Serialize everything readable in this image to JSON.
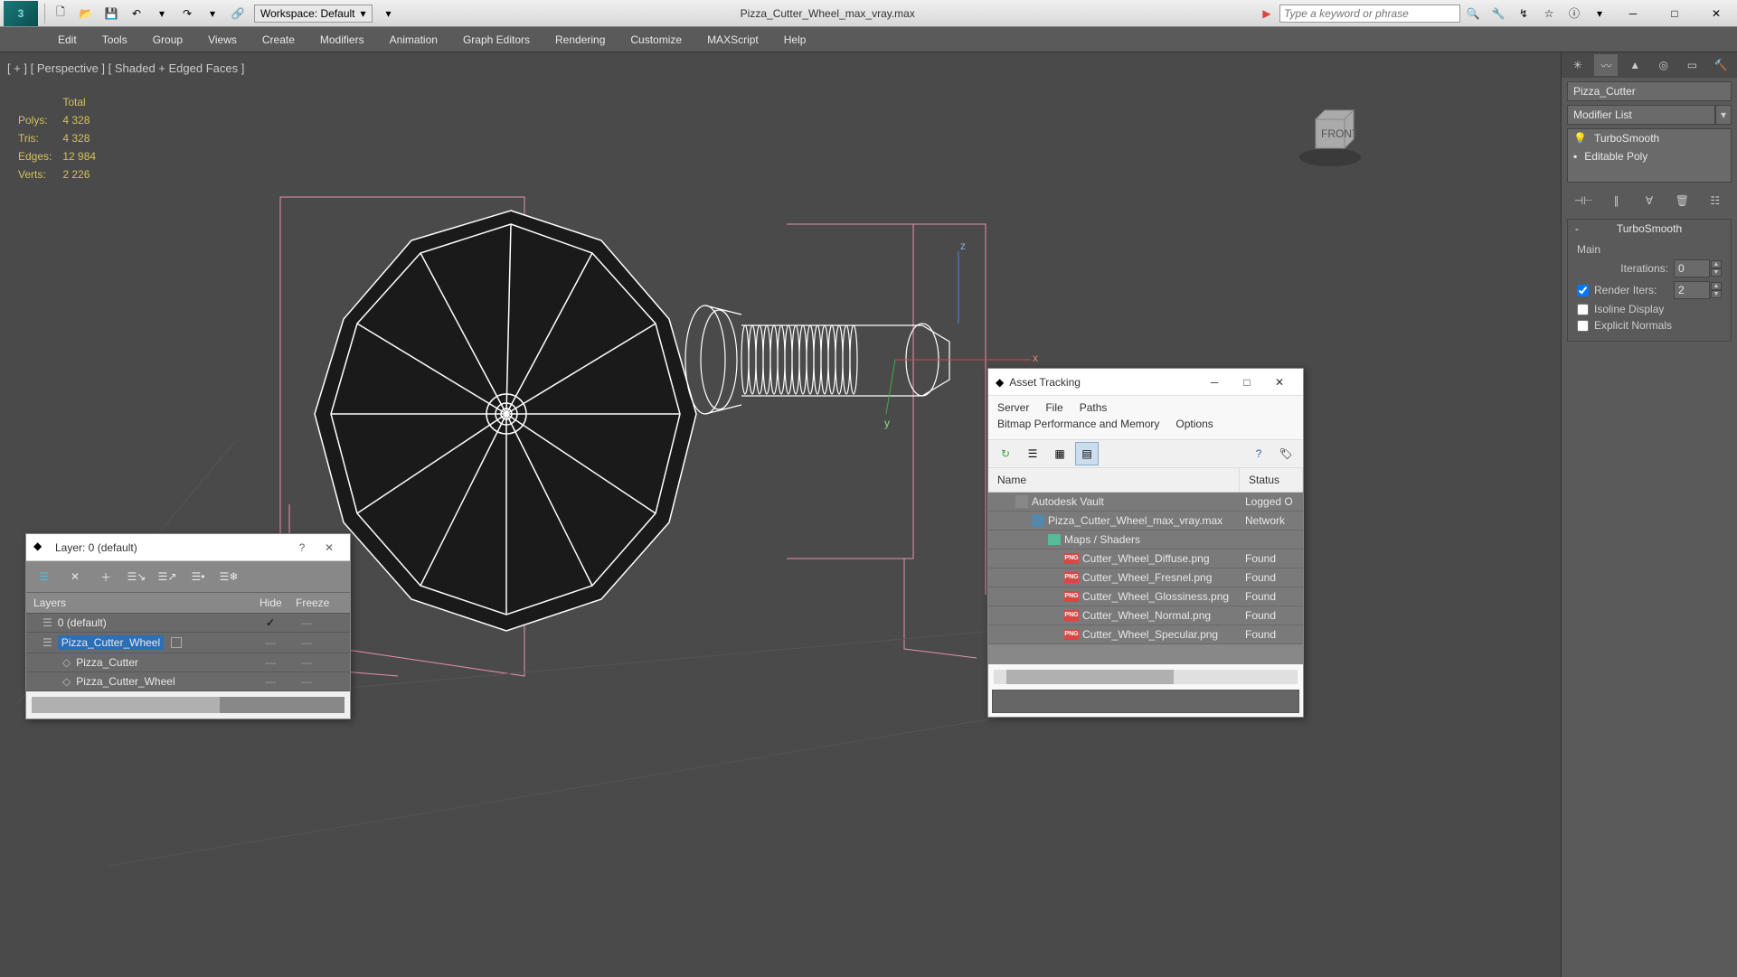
{
  "title": "Pizza_Cutter_Wheel_max_vray.max",
  "workspace_label": "Workspace: Default",
  "search_placeholder": "Type a keyword or phrase",
  "menu": [
    "Edit",
    "Tools",
    "Group",
    "Views",
    "Create",
    "Modifiers",
    "Animation",
    "Graph Editors",
    "Rendering",
    "Customize",
    "MAXScript",
    "Help"
  ],
  "viewport": {
    "label": "[ + ] [ Perspective ] [ Shaded + Edged Faces ]",
    "stats": {
      "header": "Total",
      "polys_label": "Polys:",
      "polys": "4 328",
      "tris_label": "Tris:",
      "tris": "4 328",
      "edges_label": "Edges:",
      "edges": "12 984",
      "verts_label": "Verts:",
      "verts": "2 226"
    }
  },
  "modify": {
    "object_name": "Pizza_Cutter",
    "modifier_list_label": "Modifier List",
    "stack": [
      "TurboSmooth",
      "Editable Poly"
    ],
    "rollout": {
      "title": "TurboSmooth",
      "main_label": "Main",
      "iterations_label": "Iterations:",
      "iterations": "0",
      "render_iters_label": "Render Iters:",
      "render_iters": "2",
      "render_iters_checked": true,
      "isoline_label": "Isoline Display",
      "explicit_label": "Explicit Normals"
    }
  },
  "layer_dialog": {
    "title": "Layer: 0 (default)",
    "columns": {
      "layers": "Layers",
      "hide": "Hide",
      "freeze": "Freeze"
    },
    "rows": [
      {
        "name": "0 (default)",
        "indent": 18,
        "icon": "layer",
        "sel": false,
        "check": true
      },
      {
        "name": "Pizza_Cutter_Wheel",
        "indent": 18,
        "icon": "layer",
        "sel": true,
        "box": true
      },
      {
        "name": "Pizza_Cutter",
        "indent": 40,
        "icon": "obj",
        "sel": false
      },
      {
        "name": "Pizza_Cutter_Wheel",
        "indent": 40,
        "icon": "obj",
        "sel": false
      }
    ]
  },
  "asset_dialog": {
    "title": "Asset Tracking",
    "menus_row1": [
      "Server",
      "File",
      "Paths"
    ],
    "menus_row2": [
      "Bitmap Performance and Memory",
      "Options"
    ],
    "columns": {
      "name": "Name",
      "status": "Status"
    },
    "rows": [
      {
        "indent": 24,
        "icon": "vault",
        "name": "Autodesk Vault",
        "status": "Logged O"
      },
      {
        "indent": 42,
        "icon": "file",
        "name": "Pizza_Cutter_Wheel_max_vray.max",
        "status": "Network"
      },
      {
        "indent": 60,
        "icon": "fold",
        "name": "Maps / Shaders",
        "status": ""
      },
      {
        "indent": 78,
        "icon": "png",
        "name": "Cutter_Wheel_Diffuse.png",
        "status": "Found"
      },
      {
        "indent": 78,
        "icon": "png",
        "name": "Cutter_Wheel_Fresnel.png",
        "status": "Found"
      },
      {
        "indent": 78,
        "icon": "png",
        "name": "Cutter_Wheel_Glossiness.png",
        "status": "Found"
      },
      {
        "indent": 78,
        "icon": "png",
        "name": "Cutter_Wheel_Normal.png",
        "status": "Found"
      },
      {
        "indent": 78,
        "icon": "png",
        "name": "Cutter_Wheel_Specular.png",
        "status": "Found"
      }
    ]
  },
  "colors": {
    "viewport_bg": "#4a4a4a",
    "wire": "#ffffff",
    "gizmo_pink": "#e890b0",
    "stat_yellow": "#d4c05a",
    "selection_blue": "#2b6fb8"
  }
}
